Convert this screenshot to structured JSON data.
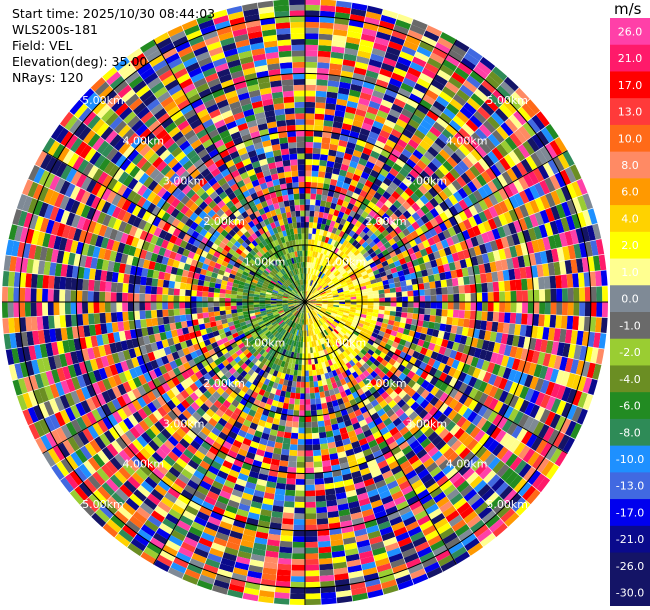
{
  "header": {
    "start_time": "Start time: 2025/10/30 08:44:03",
    "station": "WLS200s-181",
    "field": "Field: VEL",
    "elevation": "Elevation(deg): 35.00",
    "nrays": "NRays: 120"
  },
  "colorbar": {
    "unit": "m/s",
    "levels": [
      {
        "label": "26.0",
        "color": "#ff40a8"
      },
      {
        "label": "21.0",
        "color": "#ff1a6a"
      },
      {
        "label": "17.0",
        "color": "#ff0000"
      },
      {
        "label": "13.0",
        "color": "#ff3a3a"
      },
      {
        "label": "10.0",
        "color": "#ff6a18"
      },
      {
        "label": "8.0",
        "color": "#ff8a64"
      },
      {
        "label": "6.0",
        "color": "#ff9900"
      },
      {
        "label": "4.0",
        "color": "#ffd200"
      },
      {
        "label": "2.0",
        "color": "#ffff00"
      },
      {
        "label": "1.0",
        "color": "#ffff90"
      },
      {
        "label": "0.0",
        "color": "#7f8a96"
      },
      {
        "label": "-1.0",
        "color": "#6a6a6a"
      },
      {
        "label": "-2.0",
        "color": "#9acd32"
      },
      {
        "label": "-4.0",
        "color": "#6b8e23"
      },
      {
        "label": "-6.0",
        "color": "#228b22"
      },
      {
        "label": "-8.0",
        "color": "#2e8b57"
      },
      {
        "label": "-10.0",
        "color": "#1e90ff"
      },
      {
        "label": "-13.0",
        "color": "#4169e1"
      },
      {
        "label": "-17.0",
        "color": "#0000ee"
      },
      {
        "label": "-21.0",
        "color": "#0a0a8c"
      },
      {
        "label": "-26.0",
        "color": "#141466"
      },
      {
        "label": "-30.0",
        "color": "#141466"
      }
    ]
  },
  "chart_data": {
    "type": "heatmap",
    "projection": "polar PPI",
    "field": "VEL",
    "nrays": 120,
    "range_rings_km": [
      1,
      2,
      3,
      4,
      5
    ],
    "range_ring_labels": [
      "1.00km",
      "2.00km",
      "3.00km",
      "4.00km",
      "5.00km"
    ],
    "max_range_km": 5.3,
    "color_scale_ms": [
      -30,
      -26,
      -21,
      -17,
      -13,
      -10,
      -8,
      -6,
      -4,
      -2,
      -1,
      0,
      1,
      2,
      4,
      6,
      8,
      10,
      13,
      17,
      21,
      26
    ]
  }
}
